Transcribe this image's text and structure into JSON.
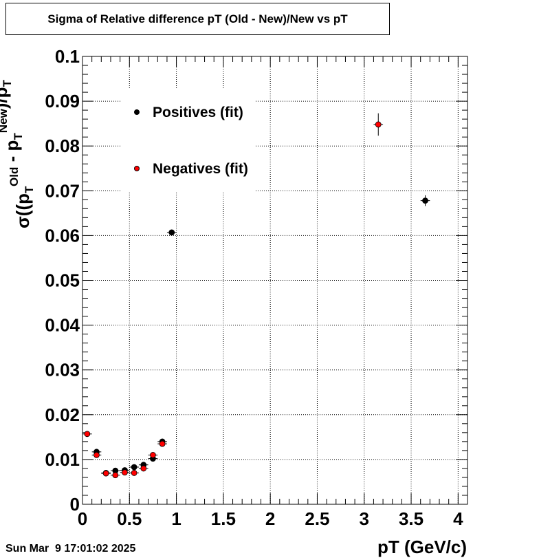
{
  "title": "Sigma of Relative difference pT (Old - New)/New vs pT",
  "timestamp": "Sun Mar  9 17:01:02 2025",
  "chart_data": {
    "type": "scatter",
    "xlabel": "pT (GeV/c)",
    "ylabel": "σ((p_T^Old - p_T^New)/p_T^New)",
    "xlim": [
      0,
      4.1
    ],
    "ylim": [
      0,
      0.1
    ],
    "x_ticks": [
      "0",
      "0.5",
      "1",
      "1.5",
      "2",
      "2.5",
      "3",
      "3.5",
      "4"
    ],
    "y_ticks": [
      "0",
      "0.01",
      "0.02",
      "0.03",
      "0.04",
      "0.05",
      "0.06",
      "0.07",
      "0.08",
      "0.09",
      "0.1"
    ],
    "grid": true,
    "legend_position": "top-left",
    "series": [
      {
        "name": "Positives (fit)",
        "color": "#000000",
        "points": [
          {
            "x": 0.15,
            "y": 0.0117,
            "ey": 0.0006
          },
          {
            "x": 0.25,
            "y": 0.007,
            "ey": 0.0004
          },
          {
            "x": 0.35,
            "y": 0.0075,
            "ey": 0.0004
          },
          {
            "x": 0.45,
            "y": 0.0076,
            "ey": 0.0004
          },
          {
            "x": 0.55,
            "y": 0.0083,
            "ey": 0.0005
          },
          {
            "x": 0.65,
            "y": 0.0088,
            "ey": 0.0005
          },
          {
            "x": 0.75,
            "y": 0.0102,
            "ey": 0.0006
          },
          {
            "x": 0.85,
            "y": 0.014,
            "ey": 0.0006
          },
          {
            "x": 0.95,
            "y": 0.0607,
            "ey": 0.0003
          },
          {
            "x": 3.65,
            "y": 0.0678,
            "ey": 0.0012
          }
        ]
      },
      {
        "name": "Negatives (fit)",
        "color": "#ff0000",
        "points": [
          {
            "x": 0.05,
            "y": 0.0157,
            "ey": 0.0004
          },
          {
            "x": 0.15,
            "y": 0.011,
            "ey": 0.0006
          },
          {
            "x": 0.25,
            "y": 0.0069,
            "ey": 0.0004
          },
          {
            "x": 0.35,
            "y": 0.0065,
            "ey": 0.0004
          },
          {
            "x": 0.45,
            "y": 0.0071,
            "ey": 0.0004
          },
          {
            "x": 0.55,
            "y": 0.007,
            "ey": 0.0004
          },
          {
            "x": 0.65,
            "y": 0.008,
            "ey": 0.0005
          },
          {
            "x": 0.75,
            "y": 0.011,
            "ey": 0.0006
          },
          {
            "x": 0.85,
            "y": 0.0135,
            "ey": 0.0006
          },
          {
            "x": 3.15,
            "y": 0.0848,
            "ey": 0.0025
          }
        ]
      }
    ]
  }
}
